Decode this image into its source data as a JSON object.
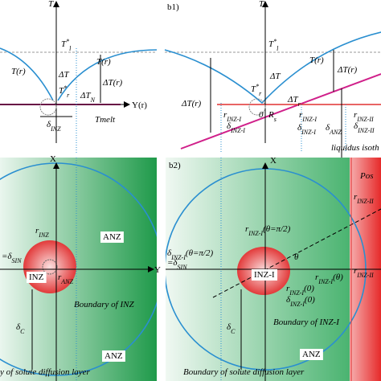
{
  "top_left": {
    "labels": [
      {
        "text": "T"
      },
      {
        "text": "T",
        "sup": "*",
        "sub": "l"
      },
      {
        "text": "T(r)"
      },
      {
        "text": "T(r)"
      },
      {
        "text": "ΔT"
      },
      {
        "text": "ΔT(r)"
      },
      {
        "text": "T",
        "sup": "*",
        "sub": "r"
      },
      {
        "text": "ΔT",
        "sub": "N"
      },
      {
        "text": "Y(r)"
      },
      {
        "text": "Tmelt"
      },
      {
        "text": "δ",
        "sub": "INZ"
      }
    ]
  },
  "top_right": {
    "labels": [
      {
        "text": "b1)"
      },
      {
        "text": "T"
      },
      {
        "text": "T",
        "sup": "*",
        "sub": "l"
      },
      {
        "text": "T(r)"
      },
      {
        "text": "ΔT"
      },
      {
        "text": "ΔT(r)"
      },
      {
        "text": "ΔT(r)"
      },
      {
        "text": "T",
        "sup": "*",
        "sub": "r"
      },
      {
        "text": "ΔT",
        "sub": "r"
      },
      {
        "text": "r",
        "sub": "INZ-I"
      },
      {
        "text": "δ",
        "sub": "INZ-I"
      },
      {
        "text": "0"
      },
      {
        "text": "R",
        "sub": "s"
      },
      {
        "text": "r",
        "sub": "INZ-I"
      },
      {
        "text": "δ",
        "sub": "INZ-I"
      },
      {
        "text": "δ",
        "sub": "ANZ"
      },
      {
        "text": "r",
        "sub": "INZ-II"
      },
      {
        "text": "δ",
        "sub": "INZ-II"
      },
      {
        "text": "liquidus isoth"
      }
    ]
  },
  "bottom_left": {
    "labels": [
      {
        "text": "X"
      },
      {
        "text": "ANZ"
      },
      {
        "text": "r",
        "sub": "INZ"
      },
      {
        "text": "=δ",
        "sub": "SIN"
      },
      {
        "text": "INZ"
      },
      {
        "text": "r",
        "sub": "ANZ"
      },
      {
        "text": "Y"
      },
      {
        "text": "Boundary of INZ"
      },
      {
        "text": "δ",
        "sub": "C"
      },
      {
        "text": "ANZ"
      },
      {
        "text": "y of solute diffusion layer"
      }
    ]
  },
  "bottom_right": {
    "labels": [
      {
        "text": "b2)"
      },
      {
        "text": "X"
      },
      {
        "text": "Pos"
      },
      {
        "text": "r",
        "sub": "INZ-II"
      },
      {
        "text": "r",
        "sub": "INZ-I",
        "after": "(θ=π/2)"
      },
      {
        "text": "δ",
        "sub": "INZ-I",
        "after": "(θ=π/2)"
      },
      {
        "text": "=δ",
        "sub": "SIN"
      },
      {
        "text": "θ"
      },
      {
        "text": "INZ-I"
      },
      {
        "text": "r",
        "sub": "INZ-I",
        "after": "(θ)"
      },
      {
        "text": "r",
        "sub": "INZ-II"
      },
      {
        "text": "r",
        "sub": "INZ-I",
        "after": "(0)"
      },
      {
        "text": "δ",
        "sub": "INZ-I",
        "after": "(0)"
      },
      {
        "text": "Boundary of INZ-I"
      },
      {
        "text": "δ",
        "sub": "C"
      },
      {
        "text": "ANZ"
      },
      {
        "text": "Boundary of  solute diffusion layer"
      }
    ]
  }
}
